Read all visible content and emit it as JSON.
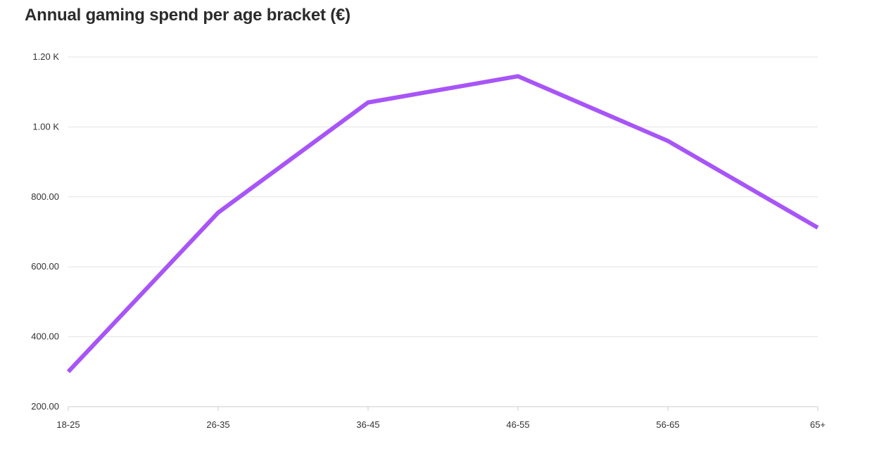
{
  "chart_data": {
    "type": "line",
    "title": "Annual gaming spend per age bracket (€)",
    "xlabel": "",
    "ylabel": "",
    "categories": [
      "18-25",
      "26-35",
      "36-45",
      "46-55",
      "56-65",
      "65+"
    ],
    "series": [
      {
        "values": [
          300,
          755,
          1070,
          1145,
          960,
          712
        ],
        "color": "#a855f7"
      }
    ],
    "ylim": [
      200,
      1200
    ],
    "yticks": [
      200,
      400,
      600,
      800,
      1000,
      1200
    ],
    "ytick_labels": [
      "200.00",
      "400.00",
      "600.00",
      "800.00",
      "1.00 K",
      "1.20 K"
    ],
    "grid": true,
    "legend": "none",
    "colors": {
      "line": "#a855f7",
      "grid": "#e3e3e3",
      "axis": "#cccccc",
      "text": "#333333",
      "title": "#2b2b2b"
    }
  }
}
